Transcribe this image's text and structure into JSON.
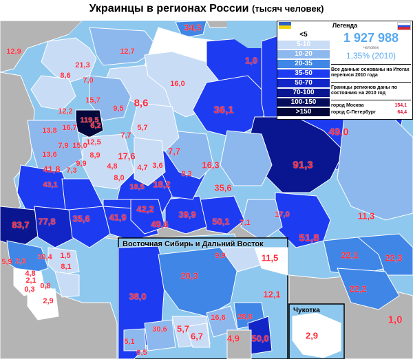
{
  "title": "Украинцы в регионах России",
  "subtitle": "(тысяч человек)",
  "legend": {
    "header": "Легенда",
    "bins": [
      {
        "label": "<5",
        "color": "#ffffff",
        "text_color": "#000000"
      },
      {
        "label": "5-10",
        "color": "#c8dcf6",
        "text_color": "#ffffff"
      },
      {
        "label": "10-20",
        "color": "#8cb8ee",
        "text_color": "#ffffff"
      },
      {
        "label": "20-35",
        "color": "#3f86e6",
        "text_color": "#ffffff"
      },
      {
        "label": "35-50",
        "color": "#1d3bf0",
        "text_color": "#ffffff"
      },
      {
        "label": "50-70",
        "color": "#1226c8",
        "text_color": "#ffffff"
      },
      {
        "label": "70-100",
        "color": "#0a1690",
        "text_color": "#ffffff"
      },
      {
        "label": "100-150",
        "color": "#060e5c",
        "text_color": "#ffffff"
      },
      {
        "label": ">150",
        "color": "#03073a",
        "text_color": "#ffffff"
      }
    ],
    "total": "1 927 988",
    "total_unit": "человек",
    "percent": "1,35% (2010)",
    "note1": "Все данные основаны на Итогах переписи 2010 года",
    "note2": "Границы регионов даны по состоянию на 2010 год",
    "cities": [
      {
        "name": "город Москва",
        "value": "154,1"
      },
      {
        "name": "город С-Петербург",
        "value": "64,4"
      }
    ]
  },
  "inset": {
    "title": "Восточная Сибирь и Дальний Восток",
    "chukotka_title": "Чукотка"
  },
  "colors": {
    "sea": "#8ec8ee",
    "foreign": "#b4b4b4",
    "label": "#ff2a3a"
  },
  "regions": [
    {
      "value": "34,3",
      "size": "m"
    },
    {
      "value": "12,9",
      "size": "s"
    },
    {
      "value": "12,7",
      "size": "s"
    },
    {
      "value": "1,0",
      "size": "m"
    },
    {
      "value": "21,3",
      "size": "s"
    },
    {
      "value": "8,6",
      "size": "s"
    },
    {
      "value": "7,0",
      "size": "s"
    },
    {
      "value": "16,0",
      "size": "s"
    },
    {
      "value": "15,7",
      "size": "s"
    },
    {
      "value": "8,6",
      "size": "l"
    },
    {
      "value": "9,5",
      "size": "s"
    },
    {
      "value": "12,2",
      "size": "s"
    },
    {
      "value": "119,5",
      "size": "s"
    },
    {
      "value": "16,7",
      "size": "s"
    },
    {
      "value": "6,2",
      "size": "s"
    },
    {
      "value": "5,7",
      "size": "s"
    },
    {
      "value": "13,8",
      "size": "s"
    },
    {
      "value": "7,7",
      "size": "s"
    },
    {
      "value": "12,5",
      "size": "s"
    },
    {
      "value": "7,9",
      "size": "s"
    },
    {
      "value": "15,0",
      "size": "s"
    },
    {
      "value": "8,9",
      "size": "s"
    },
    {
      "value": "13,6",
      "size": "s"
    },
    {
      "value": "17,6",
      "size": "m"
    },
    {
      "value": "7,7",
      "size": "m"
    },
    {
      "value": "36,1",
      "size": "l"
    },
    {
      "value": "49,0",
      "size": "l"
    },
    {
      "value": "9,9",
      "size": "s"
    },
    {
      "value": "7,3",
      "size": "s"
    },
    {
      "value": "4,8",
      "size": "s"
    },
    {
      "value": "4,7",
      "size": "s"
    },
    {
      "value": "3,6",
      "size": "s"
    },
    {
      "value": "16,3",
      "size": "m"
    },
    {
      "value": "41,8",
      "size": "m"
    },
    {
      "value": "8,3",
      "size": "s"
    },
    {
      "value": "91,3",
      "size": "l"
    },
    {
      "value": "43,1",
      "size": "s"
    },
    {
      "value": "8,0",
      "size": "s"
    },
    {
      "value": "18,2",
      "size": "m"
    },
    {
      "value": "10,5",
      "size": "s"
    },
    {
      "value": "35,6",
      "size": "m"
    },
    {
      "value": "83,7",
      "size": "m"
    },
    {
      "value": "77,8",
      "size": "m"
    },
    {
      "value": "35,6",
      "size": "m"
    },
    {
      "value": "41,9",
      "size": "m"
    },
    {
      "value": "42,2",
      "size": "m"
    },
    {
      "value": "39,9",
      "size": "m"
    },
    {
      "value": "17,0",
      "size": "s"
    },
    {
      "value": "11,3",
      "size": "m"
    },
    {
      "value": "49,6",
      "size": "m"
    },
    {
      "value": "50,1",
      "size": "m"
    },
    {
      "value": "7,1",
      "size": "s"
    },
    {
      "value": "51,8",
      "size": "l"
    },
    {
      "value": "30,4",
      "size": "s"
    },
    {
      "value": "1,5",
      "size": "s"
    },
    {
      "value": "5,9",
      "size": "s"
    },
    {
      "value": "2,0",
      "size": "s"
    },
    {
      "value": "8,1",
      "size": "s"
    },
    {
      "value": "4,8",
      "size": "s"
    },
    {
      "value": "2,1",
      "size": "s"
    },
    {
      "value": "0,3",
      "size": "s"
    },
    {
      "value": "0,8",
      "size": "s"
    },
    {
      "value": "2,9",
      "size": "s"
    },
    {
      "value": "9,9",
      "size": "s"
    },
    {
      "value": "11,5",
      "size": "m"
    },
    {
      "value": "22,1",
      "size": "m"
    },
    {
      "value": "22,3",
      "size": "m"
    },
    {
      "value": "20,3",
      "size": "m"
    },
    {
      "value": "38,0",
      "size": "m"
    },
    {
      "value": "12,1",
      "size": "m"
    },
    {
      "value": "22,2",
      "size": "m"
    },
    {
      "value": "16,6",
      "size": "s"
    },
    {
      "value": "28,8",
      "size": "s"
    },
    {
      "value": "5,7",
      "size": "m"
    },
    {
      "value": "6,7",
      "size": "m"
    },
    {
      "value": "30,6",
      "size": "s"
    },
    {
      "value": "5,1",
      "size": "s"
    },
    {
      "value": "4,9",
      "size": "m"
    },
    {
      "value": "50,0",
      "size": "m"
    },
    {
      "value": "0,5",
      "size": "s"
    },
    {
      "value": "2,9",
      "size": "m"
    },
    {
      "value": "1,0",
      "size": "l"
    }
  ]
}
